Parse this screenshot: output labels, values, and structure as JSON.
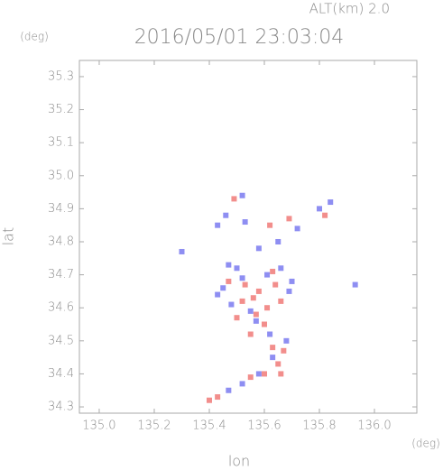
{
  "chart_data": {
    "type": "scatter",
    "title": "2016/05/01 23:03:04",
    "annotation": "ALT(km)  2.0",
    "x_label": "lon",
    "y_label": "lat",
    "x_unit": "(deg)",
    "y_unit": "(deg)",
    "xlim": [
      134.928,
      136.154
    ],
    "ylim": [
      34.281,
      35.349
    ],
    "xticks": [
      {
        "value": 135,
        "label": "135.0"
      },
      135.2,
      135.4,
      135.6,
      135.8,
      {
        "value": 136,
        "label": "136.0"
      }
    ],
    "yticks": [
      34.3,
      34.4,
      34.5,
      34.6,
      34.7,
      34.8,
      34.9,
      {
        "value": 35,
        "label": "35.0"
      },
      35.1,
      35.2,
      35.3
    ],
    "grid": false,
    "series": [
      {
        "color": "#f07a78",
        "x": [
          135.43,
          135.4,
          135.55,
          135.6,
          135.65,
          135.67,
          135.63,
          135.57,
          135.5,
          135.58,
          135.64,
          135.66,
          135.52,
          135.47,
          135.6,
          135.55,
          135.82,
          135.69,
          135.62,
          135.49,
          135.63,
          135.56,
          135.66,
          135.53,
          135.61
        ],
        "values": [
          34.33,
          34.32,
          34.39,
          34.4,
          34.43,
          34.47,
          34.48,
          34.58,
          34.57,
          34.65,
          34.67,
          34.62,
          34.62,
          34.68,
          34.55,
          34.52,
          34.88,
          34.87,
          34.85,
          34.93,
          34.71,
          34.63,
          34.4,
          34.67,
          34.6
        ]
      },
      {
        "color": "#7a7af0",
        "x": [
          135.47,
          135.52,
          135.58,
          135.63,
          135.68,
          135.62,
          135.57,
          135.48,
          135.45,
          135.43,
          135.52,
          135.61,
          135.66,
          135.69,
          135.55,
          135.5,
          135.47,
          135.53,
          135.58,
          135.65,
          135.72,
          135.8,
          135.84,
          135.52,
          135.46,
          135.93,
          135.3,
          135.43,
          135.7
        ],
        "values": [
          34.35,
          34.37,
          34.4,
          34.45,
          34.5,
          34.52,
          34.56,
          34.61,
          34.66,
          34.64,
          34.69,
          34.7,
          34.72,
          34.65,
          34.59,
          34.72,
          34.73,
          34.86,
          34.78,
          34.8,
          34.84,
          34.9,
          34.92,
          34.94,
          34.88,
          34.67,
          34.77,
          34.85,
          34.68
        ]
      }
    ]
  }
}
